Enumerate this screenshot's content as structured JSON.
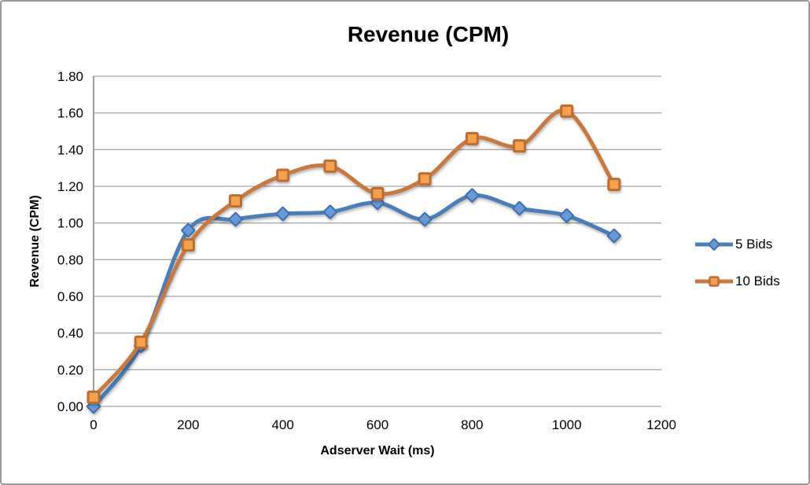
{
  "window": {
    "background": "#ffffff",
    "border_color": "#9a9a9a"
  },
  "chart_data": {
    "type": "line",
    "title": "Revenue (CPM)",
    "xlabel": "Adserver Wait (ms)",
    "ylabel": "Revenue (CPM)",
    "x": [
      0,
      100,
      200,
      300,
      400,
      500,
      600,
      700,
      800,
      900,
      1000,
      1100
    ],
    "series": [
      {
        "name": "5 Bids",
        "values": [
          0.0,
          0.33,
          0.96,
          1.02,
          1.05,
          1.06,
          1.11,
          1.02,
          1.15,
          1.08,
          1.04,
          0.93
        ],
        "line_color": "#4a7ebb",
        "marker": "diamond",
        "marker_fill": "#6699d8",
        "marker_stroke": "#3a6eae"
      },
      {
        "name": "10 Bids",
        "values": [
          0.05,
          0.35,
          0.88,
          1.12,
          1.26,
          1.31,
          1.16,
          1.24,
          1.46,
          1.42,
          1.61,
          1.21
        ],
        "line_color": "#c9783f",
        "marker": "square",
        "marker_fill": "#f6a04d",
        "marker_stroke": "#bc6d31"
      }
    ],
    "xlim": [
      0,
      1200
    ],
    "ylim": [
      0,
      1.8
    ],
    "x_ticks": [
      "0",
      "200",
      "400",
      "600",
      "800",
      "1000",
      "1200"
    ],
    "y_ticks": [
      "0.00",
      "0.20",
      "0.40",
      "0.60",
      "0.80",
      "1.00",
      "1.20",
      "1.40",
      "1.60",
      "1.80"
    ],
    "grid": true,
    "legend_position": "right",
    "gridline_color": "#a6a6a6",
    "axis_color": "#7f7f7f",
    "smooth_lines": true
  }
}
